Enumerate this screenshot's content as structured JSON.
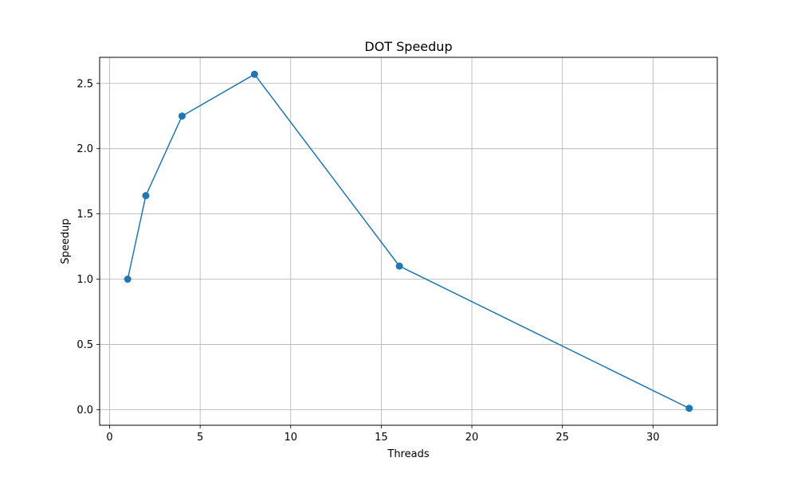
{
  "chart_data": {
    "type": "line",
    "title": "DOT Speedup",
    "xlabel": "Threads",
    "ylabel": "Speedup",
    "xlim": [
      -0.55,
      33.55
    ],
    "ylim": [
      -0.12,
      2.7
    ],
    "xticks": [
      0,
      5,
      10,
      15,
      20,
      25,
      30
    ],
    "yticks": [
      0.0,
      0.5,
      1.0,
      1.5,
      2.0,
      2.5
    ],
    "xtick_labels": [
      "0",
      "5",
      "10",
      "15",
      "20",
      "25",
      "30"
    ],
    "ytick_labels": [
      "0.0",
      "0.5",
      "1.0",
      "1.5",
      "2.0",
      "2.5"
    ],
    "grid": true,
    "series": [
      {
        "x": [
          1,
          2,
          4,
          8,
          16,
          32
        ],
        "values": [
          1.0,
          1.64,
          2.25,
          2.57,
          1.1,
          0.01
        ],
        "color": "#1f77b4",
        "marker": "circle"
      }
    ]
  }
}
